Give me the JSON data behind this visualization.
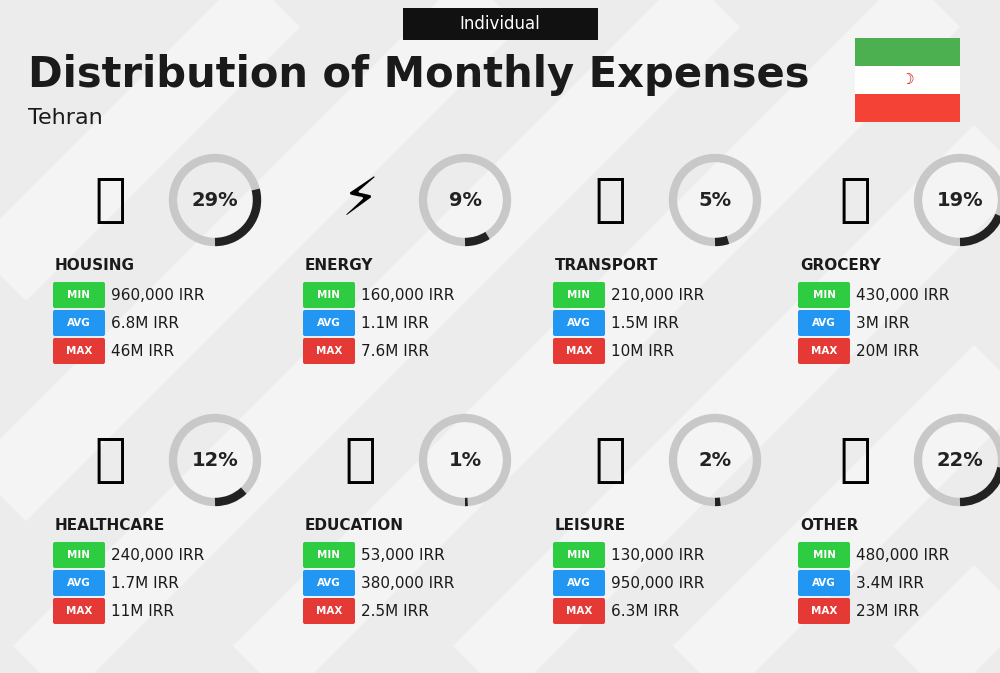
{
  "title": "Distribution of Monthly Expenses",
  "subtitle": "Individual",
  "city": "Tehran",
  "background_color": "#ececec",
  "categories": [
    {
      "name": "HOUSING",
      "pct": 29,
      "min": "960,000 IRR",
      "avg": "6.8M IRR",
      "max": "46M IRR",
      "row": 0,
      "col": 0
    },
    {
      "name": "ENERGY",
      "pct": 9,
      "min": "160,000 IRR",
      "avg": "1.1M IRR",
      "max": "7.6M IRR",
      "row": 0,
      "col": 1
    },
    {
      "name": "TRANSPORT",
      "pct": 5,
      "min": "210,000 IRR",
      "avg": "1.5M IRR",
      "max": "10M IRR",
      "row": 0,
      "col": 2
    },
    {
      "name": "GROCERY",
      "pct": 19,
      "min": "430,000 IRR",
      "avg": "3M IRR",
      "max": "20M IRR",
      "row": 0,
      "col": 3
    },
    {
      "name": "HEALTHCARE",
      "pct": 12,
      "min": "240,000 IRR",
      "avg": "1.7M IRR",
      "max": "11M IRR",
      "row": 1,
      "col": 0
    },
    {
      "name": "EDUCATION",
      "pct": 1,
      "min": "53,000 IRR",
      "avg": "380,000 IRR",
      "max": "2.5M IRR",
      "row": 1,
      "col": 1
    },
    {
      "name": "LEISURE",
      "pct": 2,
      "min": "130,000 IRR",
      "avg": "950,000 IRR",
      "max": "6.3M IRR",
      "row": 1,
      "col": 2
    },
    {
      "name": "OTHER",
      "pct": 22,
      "min": "480,000 IRR",
      "avg": "3.4M IRR",
      "max": "23M IRR",
      "row": 1,
      "col": 3
    }
  ],
  "min_color": "#2ecc40",
  "avg_color": "#2196F3",
  "max_color": "#e53935",
  "text_color": "#1a1a1a",
  "flag_green": "#4caf50",
  "flag_red": "#f44336",
  "stripe_color": "#ffffff",
  "circle_gray": "#c8c8c8",
  "circle_dark": "#222222",
  "badge_text": "#ffffff",
  "ind_box_color": "#111111",
  "ind_text_color": "#ffffff"
}
